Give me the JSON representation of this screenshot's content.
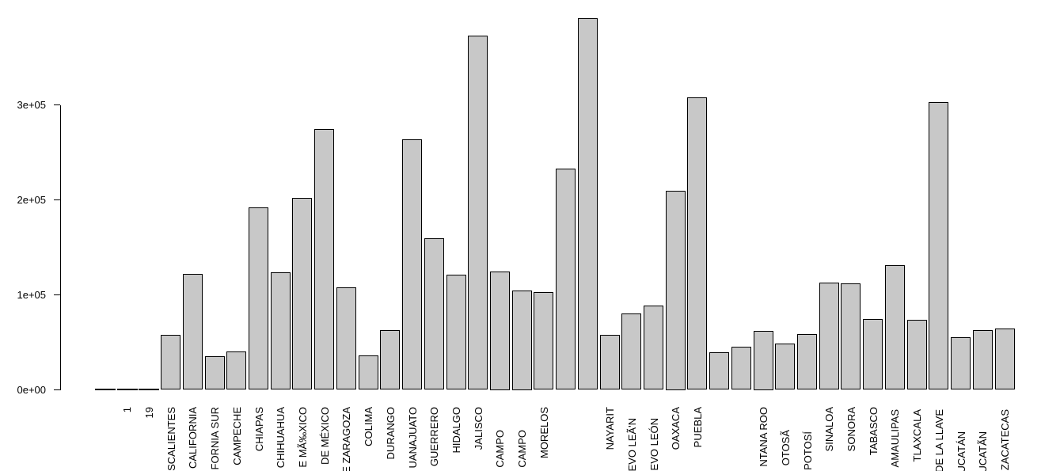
{
  "chart_data": {
    "type": "bar",
    "title": "",
    "xlabel": "",
    "ylabel": "",
    "legend": null,
    "grid": false,
    "ylim": [
      0,
      400000
    ],
    "y_axis": {
      "tick_labels": [
        "0e+00",
        "1e+05",
        "2e+05",
        "3e+05"
      ],
      "tick_values": [
        0,
        100000,
        200000,
        300000
      ]
    },
    "bars": [
      {
        "label": "",
        "value": 0
      },
      {
        "label": "1",
        "value": 0
      },
      {
        "label": "19",
        "value": 0
      },
      {
        "label": "SCALIENTES",
        "value": 57800
      },
      {
        "label": "CALIFORNIA",
        "value": 122200
      },
      {
        "label": "FORNIA SUR",
        "value": 35600
      },
      {
        "label": "CAMPECHE",
        "value": 40600
      },
      {
        "label": "CHIAPAS",
        "value": 191700
      },
      {
        "label": "CHIHUAHUA",
        "value": 123900
      },
      {
        "label": "E MÃ‰XICO",
        "value": 202200
      },
      {
        "label": "DE MÉXICO",
        "value": 274500
      },
      {
        "label": "E ZARAGOZA",
        "value": 107800
      },
      {
        "label": "COLIMA",
        "value": 36100
      },
      {
        "label": "DURANGO",
        "value": 62800
      },
      {
        "label": "UANAJUATO",
        "value": 263900
      },
      {
        "label": "GUERRERO",
        "value": 159200
      },
      {
        "label": "HIDALGO",
        "value": 121100
      },
      {
        "label": "JALISCO",
        "value": 373100
      },
      {
        "label": "CAMPO",
        "value": 125000,
        "label_top": 543
      },
      {
        "label": "CAMPO",
        "value": 105000,
        "label_top": 543
      },
      {
        "label": "MORELOS",
        "value": 102800
      },
      {
        "label": "",
        "value": 233300
      },
      {
        "label": "",
        "value": 391100
      },
      {
        "label": "NAYARIT",
        "value": 57800
      },
      {
        "label": "EVO LEÃ'N",
        "value": 80600,
        "label_top": 528
      },
      {
        "label": "EVO LEÓN",
        "value": 88900,
        "label_top": 528
      },
      {
        "label": "OAXACA",
        "value": 210000
      },
      {
        "label": "PUEBLA",
        "value": 308300
      },
      {
        "label": "",
        "value": 39200
      },
      {
        "label": "",
        "value": 45300
      },
      {
        "label": "NTANA ROO",
        "value": 62500
      },
      {
        "label": "OTOSÃ",
        "value": 48900,
        "label_top": 543
      },
      {
        "label": "POTOSÍ",
        "value": 58600,
        "label_top": 545
      },
      {
        "label": "SINALOA",
        "value": 112800
      },
      {
        "label": "SONORA",
        "value": 111900
      },
      {
        "label": "TABASCO",
        "value": 74500
      },
      {
        "label": "AMAULIPAS",
        "value": 131400,
        "label_top": 517
      },
      {
        "label": "TLAXCALA",
        "value": 73600,
        "label_top": 517
      },
      {
        "label": "DE LA LLAVE",
        "value": 303100,
        "label_top": 517
      },
      {
        "label": "UCATÁN",
        "value": 55600,
        "label_top": 545
      },
      {
        "label": "UCATÃN",
        "value": 62800,
        "label_top": 545
      },
      {
        "label": "ZACATECAS",
        "value": 64200,
        "label_top": 517
      }
    ],
    "colors": {
      "bar_fill": "#c8c8c8",
      "bar_border": "#000000",
      "axis": "#000000",
      "background": "#ffffff"
    }
  }
}
